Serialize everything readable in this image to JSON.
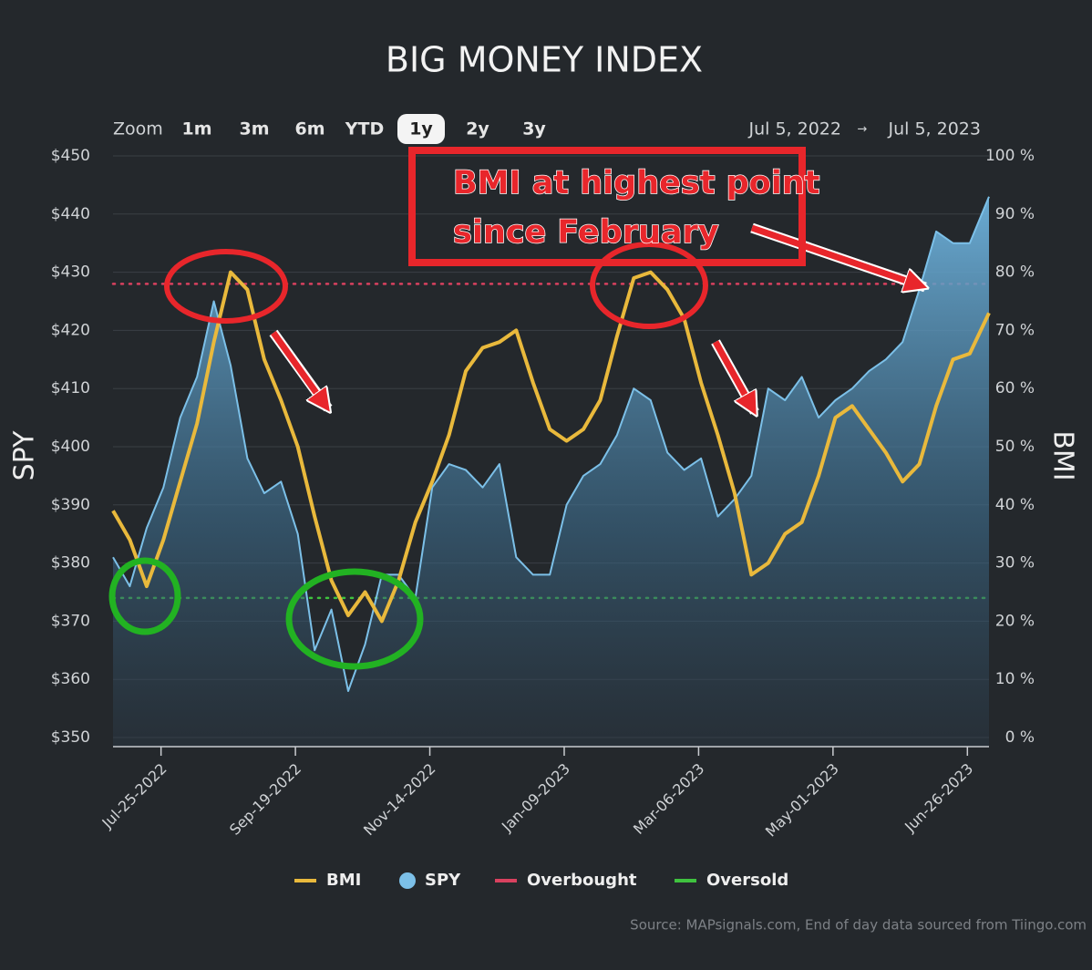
{
  "chart_data": {
    "type": "line",
    "title": "BIG MONEY INDEX",
    "range_selector": {
      "label": "Zoom",
      "buttons": [
        "1m",
        "3m",
        "6m",
        "YTD",
        "1y",
        "2y",
        "3y"
      ],
      "selected": 4,
      "from": "Jul 5, 2022",
      "arrow": "→",
      "to": "Jul 5, 2023"
    },
    "y_label": "SPY",
    "y2_label": "BMI",
    "x": [
      "2022-07-05",
      "2022-07-12",
      "2022-07-19",
      "2022-07-26",
      "2022-08-02",
      "2022-08-09",
      "2022-08-16",
      "2022-08-23",
      "2022-08-30",
      "2022-09-06",
      "2022-09-13",
      "2022-09-20",
      "2022-09-27",
      "2022-10-04",
      "2022-10-11",
      "2022-10-18",
      "2022-10-25",
      "2022-11-01",
      "2022-11-08",
      "2022-11-15",
      "2022-11-22",
      "2022-11-29",
      "2022-12-06",
      "2022-12-13",
      "2022-12-20",
      "2022-12-27",
      "2023-01-03",
      "2023-01-10",
      "2023-01-17",
      "2023-01-24",
      "2023-01-31",
      "2023-02-07",
      "2023-02-14",
      "2023-02-21",
      "2023-02-28",
      "2023-03-07",
      "2023-03-14",
      "2023-03-21",
      "2023-03-28",
      "2023-04-04",
      "2023-04-11",
      "2023-04-18",
      "2023-04-25",
      "2023-05-02",
      "2023-05-09",
      "2023-05-16",
      "2023-05-23",
      "2023-05-30",
      "2023-06-06",
      "2023-06-13",
      "2023-06-20",
      "2023-06-27",
      "2023-07-05"
    ],
    "series": [
      {
        "name": "BMI",
        "color": "#e9b93c",
        "axis": "y2",
        "values": [
          39,
          34,
          26,
          34,
          44,
          54,
          68,
          80,
          77,
          65,
          58,
          50,
          38,
          27,
          21,
          25,
          20,
          27,
          37,
          44,
          52,
          63,
          67,
          68,
          70,
          61,
          53,
          51,
          53,
          58,
          69,
          79,
          80,
          77,
          72,
          61,
          52,
          42,
          28,
          30,
          35,
          37,
          45,
          55,
          57,
          53,
          49,
          44,
          47,
          57,
          65,
          66,
          73
        ]
      },
      {
        "name": "SPY",
        "color": "#7cc0e8",
        "fill": "area",
        "values": [
          381,
          376,
          386,
          393,
          405,
          412,
          425,
          414,
          398,
          392,
          394,
          385,
          365,
          372,
          358,
          366,
          378,
          378,
          374,
          393,
          397,
          396,
          393,
          397,
          381,
          378,
          378,
          390,
          395,
          397,
          402,
          410,
          408,
          399,
          396,
          398,
          388,
          391,
          395,
          410,
          408,
          412,
          405,
          408,
          410,
          413,
          415,
          418,
          427,
          437,
          435,
          435,
          443
        ]
      }
    ],
    "reference_lines": [
      {
        "name": "Overbought",
        "color": "#d9415f",
        "value": 78,
        "axis": "y2"
      },
      {
        "name": "Oversold",
        "color": "#3fc23f",
        "value": 24,
        "axis": "y2"
      }
    ],
    "xlim": [
      "2022-07-05",
      "2023-07-05"
    ],
    "xticks": [
      {
        "value": "2022-07-25",
        "label": "Jul-25-2022"
      },
      {
        "value": "2022-09-19",
        "label": "Sep-19-2022"
      },
      {
        "value": "2022-11-14",
        "label": "Nov-14-2022"
      },
      {
        "value": "2023-01-09",
        "label": "Jan-09-2023"
      },
      {
        "value": "2023-03-06",
        "label": "Mar-06-2023"
      },
      {
        "value": "2023-05-01",
        "label": "May-01-2023"
      },
      {
        "value": "2023-06-26",
        "label": "Jun-26-2023"
      }
    ],
    "ylim": [
      350,
      450
    ],
    "yticks": [
      {
        "value": 350,
        "label": "$350"
      },
      {
        "value": 360,
        "label": "$360"
      },
      {
        "value": 370,
        "label": "$370"
      },
      {
        "value": 380,
        "label": "$380"
      },
      {
        "value": 390,
        "label": "$390"
      },
      {
        "value": 400,
        "label": "$400"
      },
      {
        "value": 410,
        "label": "$410"
      },
      {
        "value": 420,
        "label": "$420"
      },
      {
        "value": 430,
        "label": "$430"
      },
      {
        "value": 440,
        "label": "$440"
      },
      {
        "value": 450,
        "label": "$450"
      }
    ],
    "y2lim": [
      0,
      100
    ],
    "y2ticks": [
      {
        "value": 0,
        "label": "0 %"
      },
      {
        "value": 10,
        "label": "10 %"
      },
      {
        "value": 20,
        "label": "20 %"
      },
      {
        "value": 30,
        "label": "30 %"
      },
      {
        "value": 40,
        "label": "40 %"
      },
      {
        "value": 50,
        "label": "50 %"
      },
      {
        "value": 60,
        "label": "60 %"
      },
      {
        "value": 70,
        "label": "70 %"
      },
      {
        "value": 80,
        "label": "80 %"
      },
      {
        "value": 90,
        "label": "90 %"
      },
      {
        "value": 100,
        "label": "100 %"
      }
    ],
    "grid": true,
    "annotation": {
      "lines": [
        "BMI at highest point",
        "since February"
      ]
    },
    "source": "Source: MAPsignals.com, End of day data sourced from Tiingo.com"
  }
}
